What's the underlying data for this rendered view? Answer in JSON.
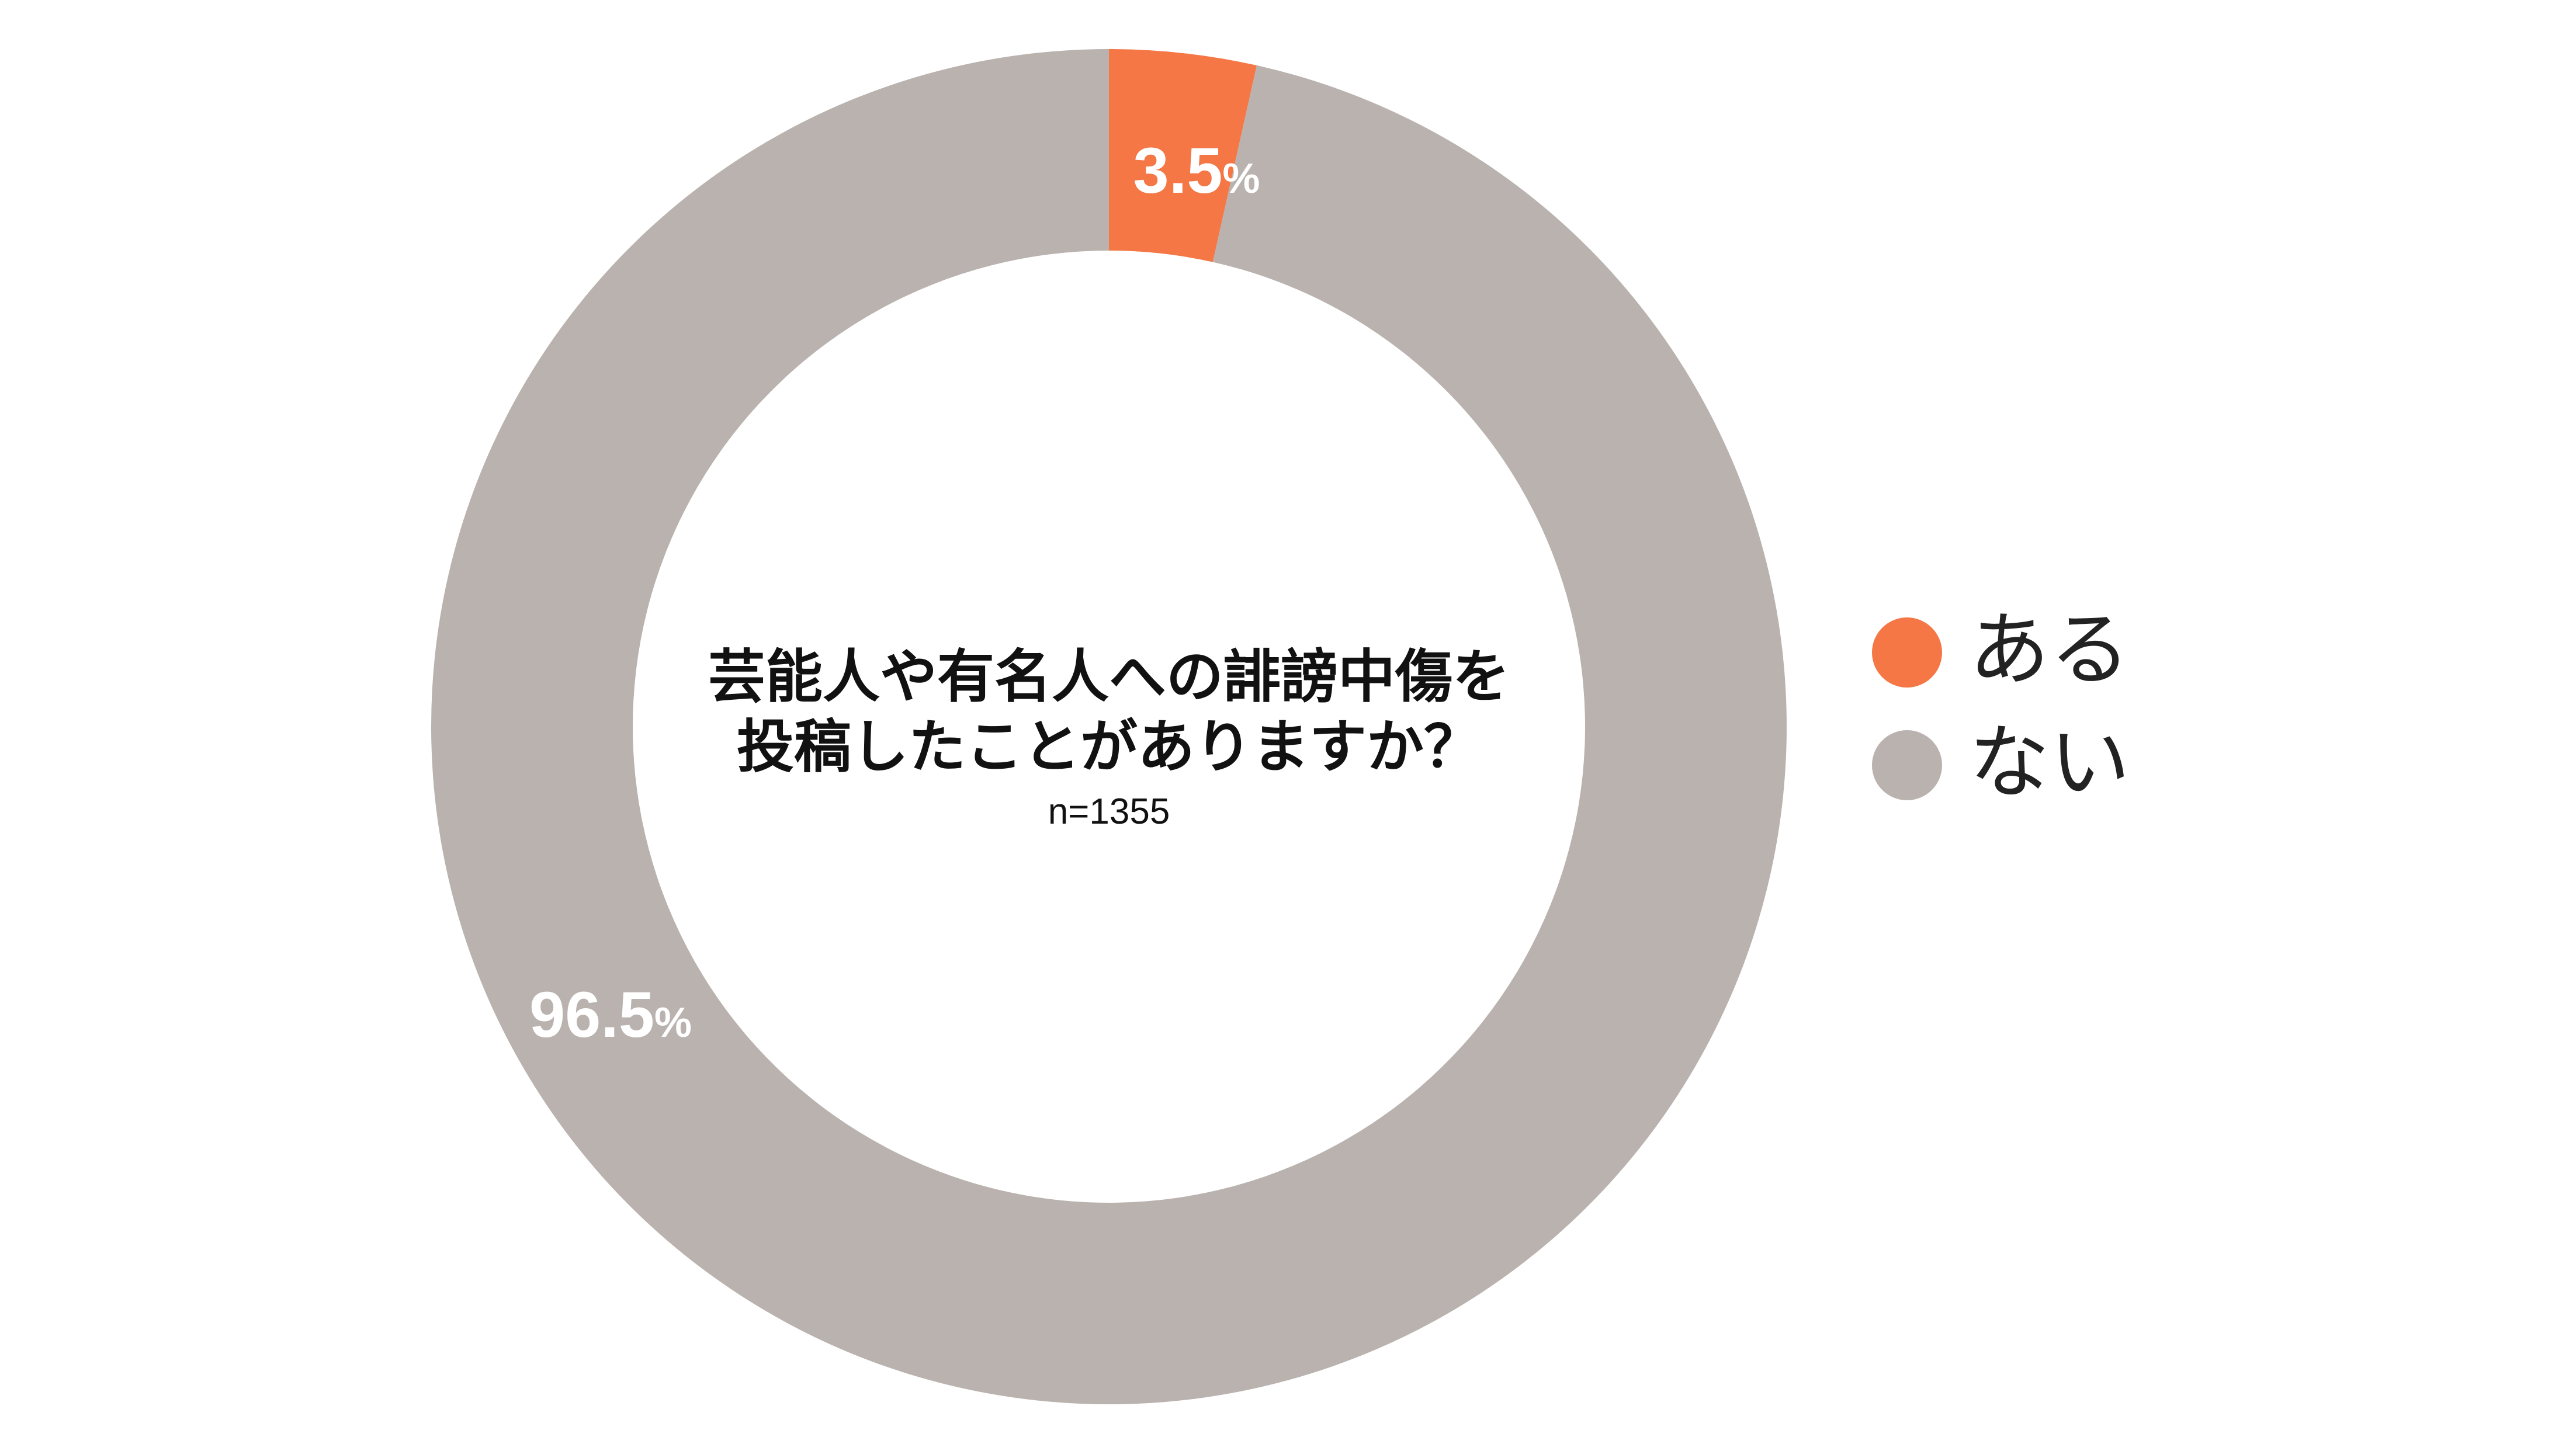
{
  "chart_data": {
    "type": "pie",
    "title_lines": [
      "芸能人や有名人への誹謗中傷を",
      "投稿したことがありますか？"
    ],
    "sample_size": "n=1355",
    "slices": [
      {
        "label": "ある",
        "value": 3.5,
        "value_text": "3.5",
        "unit_text": "%",
        "color": "#f47745"
      },
      {
        "label": "ない",
        "value": 96.5,
        "value_text": "96.5",
        "unit_text": "%",
        "color": "#b9b2ae"
      }
    ]
  }
}
